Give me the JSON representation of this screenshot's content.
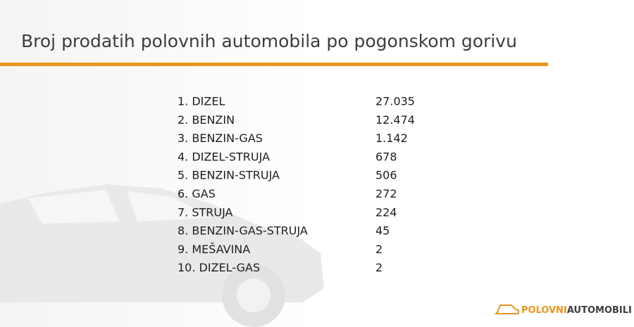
{
  "header": {
    "title": "Broj prodatih polovnih automobila po pogonskom gorivu"
  },
  "table": {
    "rows": [
      [
        "1. DIZEL",
        "27.035"
      ],
      [
        "2. BENZIN",
        "12.474"
      ],
      [
        "3. BENZIN-GAS",
        "1.142"
      ],
      [
        "4. DIZEL-STRUJA",
        "678"
      ],
      [
        "5. BENZIN-STRUJA",
        "506"
      ],
      [
        "6. GAS",
        "272"
      ],
      [
        "7. STRUJA",
        "224"
      ],
      [
        "8. BENZIN-GAS-STRUJA",
        "45"
      ],
      [
        "9. MEŠAVINA",
        "2"
      ],
      [
        "10. DIZEL-GAS",
        "2"
      ]
    ]
  },
  "logo": {
    "first": "POLOVNI",
    "second": "AUTOMOBILI"
  }
}
